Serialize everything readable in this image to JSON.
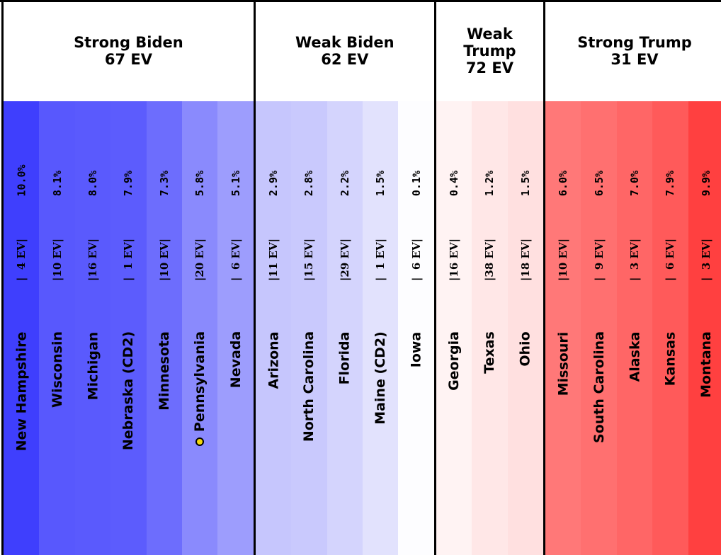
{
  "chart_data": {
    "type": "table",
    "groups": [
      {
        "label": "Strong Biden",
        "ev": "67 EV",
        "states": [
          {
            "name": "New Hampshire",
            "ev": "|  4 EV|",
            "margin": "10.0%",
            "color": "#3f3ffd"
          },
          {
            "name": "Wisconsin",
            "ev": "|10 EV|",
            "margin": "8.1%",
            "color": "#5858fd"
          },
          {
            "name": "Michigan",
            "ev": "|16 EV|",
            "margin": "8.0%",
            "color": "#5a5afd"
          },
          {
            "name": "Nebraska (CD2)",
            "ev": "|  1 EV|",
            "margin": "7.9%",
            "color": "#5c5cfd"
          },
          {
            "name": "Minnesota",
            "ev": "|10 EV|",
            "margin": "7.3%",
            "color": "#6d6dfd"
          },
          {
            "name": "Pennsylvania",
            "ev": "|20 EV|",
            "margin": "5.8%",
            "color": "#8a8afd",
            "marker": true
          },
          {
            "name": "Nevada",
            "ev": "|  6 EV|",
            "margin": "5.1%",
            "color": "#9d9dfd"
          }
        ]
      },
      {
        "label": "Weak Biden",
        "ev": "62 EV",
        "states": [
          {
            "name": "Arizona",
            "ev": "|11 EV|",
            "margin": "2.9%",
            "color": "#c6c6fd"
          },
          {
            "name": "North Carolina",
            "ev": "|15 EV|",
            "margin": "2.8%",
            "color": "#c9c9fd"
          },
          {
            "name": "Florida",
            "ev": "|29 EV|",
            "margin": "2.2%",
            "color": "#d4d4fd"
          },
          {
            "name": "Maine (CD2)",
            "ev": "|  1 EV|",
            "margin": "1.5%",
            "color": "#e2e2fd"
          },
          {
            "name": "Iowa",
            "ev": "|  6 EV|",
            "margin": "0.1%",
            "color": "#fdfdff"
          }
        ]
      },
      {
        "label": "Weak Trump",
        "ev": "72 EV",
        "states": [
          {
            "name": "Georgia",
            "ev": "|16 EV|",
            "margin": "0.4%",
            "color": "#fff3f3"
          },
          {
            "name": "Texas",
            "ev": "|38 EV|",
            "margin": "1.2%",
            "color": "#ffe7e7"
          },
          {
            "name": "Ohio",
            "ev": "|18 EV|",
            "margin": "1.5%",
            "color": "#ffe0e0"
          }
        ]
      },
      {
        "label": "Strong Trump",
        "ev": "31 EV",
        "states": [
          {
            "name": "Missouri",
            "ev": "|10 EV|",
            "margin": "6.0%",
            "color": "#ff7878"
          },
          {
            "name": "South Carolina",
            "ev": "|  9 EV|",
            "margin": "6.5%",
            "color": "#ff7070"
          },
          {
            "name": "Alaska",
            "ev": "|  3 EV|",
            "margin": "7.0%",
            "color": "#ff6666"
          },
          {
            "name": "Kansas",
            "ev": "|  6 EV|",
            "margin": "7.9%",
            "color": "#ff5a5a"
          },
          {
            "name": "Montana",
            "ev": "|  3 EV|",
            "margin": "9.9%",
            "color": "#ff4040"
          }
        ]
      }
    ],
    "header_lines": {
      "Weak Trump": [
        "Weak",
        "Trump",
        "72 EV"
      ]
    }
  }
}
